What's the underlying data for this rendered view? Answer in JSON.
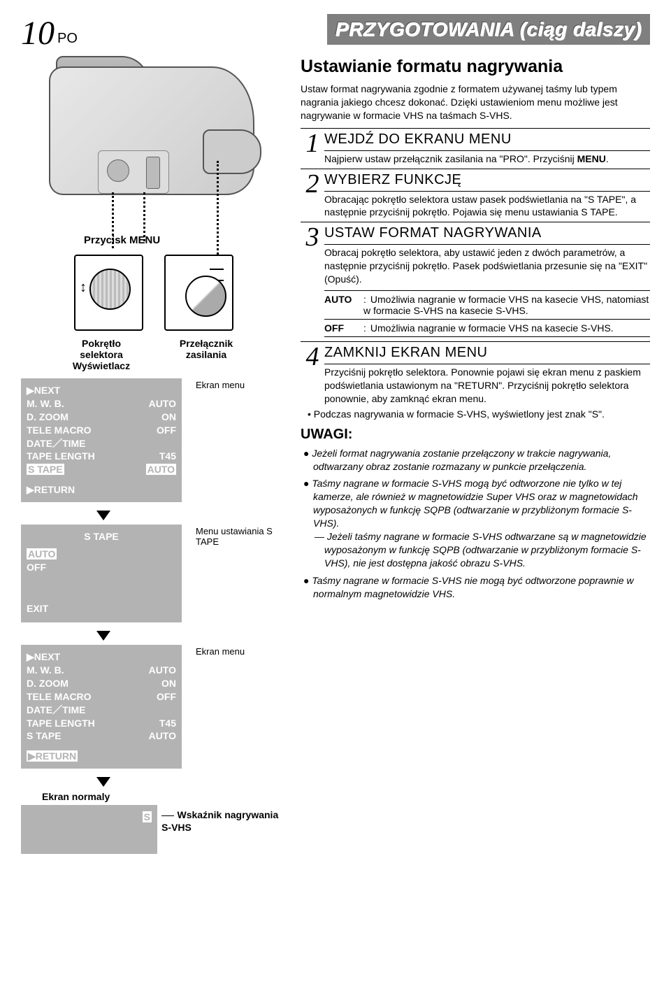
{
  "page": {
    "num": "10",
    "sub": "PO"
  },
  "header": "PRZYGOTOWANIA (ciąg dalszy)",
  "left": {
    "menu_button": "Przycisk MENU",
    "selector_label": "Pokrętło selektora",
    "display_label": "Wyświetlacz",
    "power_label": "Przełącznik zasilania",
    "ekran_menu": "Ekran menu",
    "menu_s_tape": "Menu ustawiania S TAPE",
    "ekran_normaly": "Ekran normaly",
    "wskaznik": "Wskaźnik nagrywania S-VHS",
    "s_letter": "S",
    "menu1": {
      "rows": [
        [
          "▶NEXT",
          ""
        ],
        [
          "M. W. B.",
          "AUTO"
        ],
        [
          "D. ZOOM",
          "ON"
        ],
        [
          "TELE MACRO",
          "OFF"
        ],
        [
          "DATE／TIME",
          ""
        ],
        [
          "TAPE LENGTH",
          "T45"
        ],
        [
          "S TAPE",
          "AUTO"
        ]
      ],
      "highlight_row": 6,
      "footer": "▶RETURN"
    },
    "stape": {
      "title": "S TAPE",
      "rows": [
        [
          "AUTO",
          ""
        ],
        [
          "OFF",
          ""
        ]
      ],
      "highlight": "AUTO",
      "exit": "EXIT"
    },
    "menu2": {
      "rows": [
        [
          "▶NEXT",
          ""
        ],
        [
          "M. W. B.",
          "AUTO"
        ],
        [
          "D. ZOOM",
          "ON"
        ],
        [
          "TELE MACRO",
          "OFF"
        ],
        [
          "DATE／TIME",
          ""
        ],
        [
          "TAPE LENGTH",
          "T45"
        ],
        [
          "S TAPE",
          "AUTO"
        ]
      ],
      "footer": "▶RETURN",
      "footer_hl": true
    }
  },
  "right": {
    "title": "Ustawianie formatu nagrywania",
    "intro1": "Ustaw format nagrywania zgodnie z formatem używanej taśmy lub typem nagrania jakiego chcesz dokonać. Dzięki ustawieniom menu możliwe jest nagrywanie w formacie VHS na taśmach S-VHS.",
    "steps": [
      {
        "n": "1",
        "h": "WEJDŹ DO EKRANU MENU",
        "b": "Najpierw ustaw przełącznik zasilania na \"PRO\". Przyciśnij MENU."
      },
      {
        "n": "2",
        "h": "WYBIERZ FUNKCJĘ",
        "b": "Obracając pokrętło selektora ustaw pasek podświetlania na \"S TAPE\", a następnie przyciśnij pokrętło. Pojawia się menu ustawiania S TAPE."
      },
      {
        "n": "3",
        "h": "USTAW FORMAT NAGRYWANIA",
        "b": "Obracaj pokrętło selektora, aby ustawić jeden z dwóch parametrów, a następnie przyciśnij pokrętło. Pasek podświetlania przesunie się na \"EXIT\" (Opuść)."
      },
      {
        "n": "4",
        "h": "ZAMKNIJ EKRAN MENU",
        "b": "Przyciśnij pokrętło selektora. Ponownie pojawi się ekran menu z paskiem podświetlania ustawionym na \"RETURN\". Przyciśnij pokrętło selektora ponownie, aby zamknąć ekran menu."
      }
    ],
    "defs": [
      {
        "k": "AUTO",
        "v": "Umożliwia nagranie w formacie VHS na kasecie VHS, natomiast w formacie S-VHS na kasecie S-VHS."
      },
      {
        "k": "OFF",
        "v": "Umożliwia nagranie w formacie VHS na kasecie S-VHS."
      }
    ],
    "notes_intro": "• Podczas nagrywania w formacie S-VHS, wyświetlony jest znak \"S\".",
    "notes_head": "UWAGI:",
    "notes": [
      "Jeżeli format nagrywania zostanie przełączony w trakcie nagrywania, odtwarzany obraz zostanie rozmazany w punkcie przełączenia.",
      "Taśmy nagrane w formacie S-VHS mogą być odtworzone nie tylko w tej kamerze, ale również w magnetowidzie Super VHS oraz w magnetowidach wyposażonych w funkcję SQPB (odtwarzanie w przybliżonym formacie S-VHS).",
      "Taśmy nagrane w formacie S-VHS nie mogą być odtworzone poprawnie w normalnym magnetowidzie VHS."
    ],
    "sub_dash": "— Jeżeli taśmy nagrane w formacie S-VHS odtwarzane są w magnetowidzie wyposażonym w funkcję SQPB (odtwarzanie w przybliżonym formacie S-VHS), nie jest dostępna jakość obrazu S-VHS."
  }
}
